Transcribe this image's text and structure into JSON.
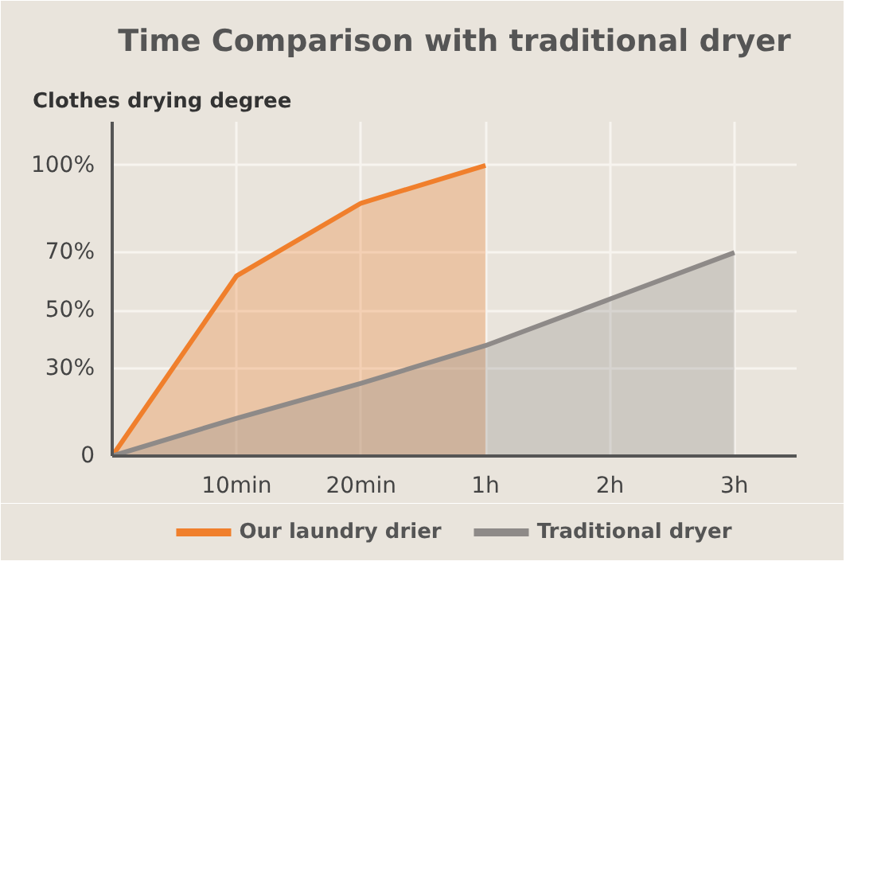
{
  "chart_data": {
    "type": "area",
    "title": "Time Comparison with traditional dryer",
    "ylabel": "Clothes drying degree",
    "categories": [
      null,
      "10min",
      "20min",
      "1h",
      "2h",
      "3h"
    ],
    "ylim": [
      0,
      115
    ],
    "yticks": [
      {
        "value": 0,
        "label": "0"
      },
      {
        "value": 30,
        "label": "30%"
      },
      {
        "value": 50,
        "label": "50%"
      },
      {
        "value": 70,
        "label": "70%"
      },
      {
        "value": 100,
        "label": "100%"
      }
    ],
    "grid": true,
    "legend": "bottom",
    "series": [
      {
        "name": "Our laundry drier",
        "color": "#f07f2c",
        "values": [
          0,
          62,
          87,
          100,
          null,
          null
        ]
      },
      {
        "name": "Traditional dryer",
        "color": "#8e8a88",
        "values": [
          0,
          13,
          25,
          38,
          54,
          70
        ]
      }
    ]
  }
}
